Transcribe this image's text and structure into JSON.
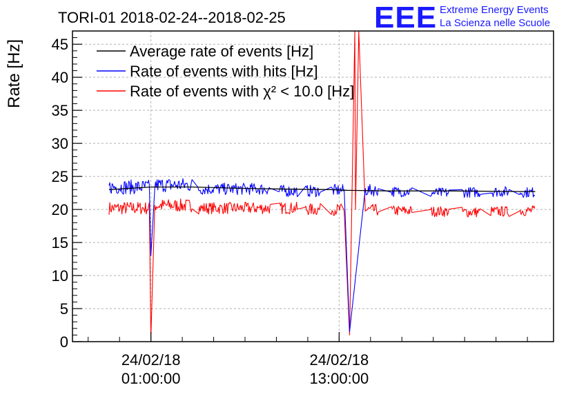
{
  "logo": {
    "mark": "EEE",
    "line1": "Extreme Energy Events",
    "line2": "La Scienza nelle Scuole"
  },
  "chart_data": {
    "type": "line",
    "title": "TORI-01 2018-02-24--2018-02-25",
    "xlabel": "",
    "ylabel": "Rate [Hz]",
    "ylim": [
      0,
      47
    ],
    "y_ticks": [
      0,
      5,
      10,
      15,
      20,
      25,
      30,
      35,
      40,
      45
    ],
    "xlim": [
      "2018-02-23T20:00:00",
      "2018-02-25T02:40:00"
    ],
    "x_ticks": [
      {
        "x": "2018-02-24T01:00:00",
        "date": "24/02/18",
        "time": "01:00:00"
      },
      {
        "x": "2018-02-24T13:00:00",
        "date": "24/02/18",
        "time": "13:00:00"
      }
    ],
    "grid": true,
    "legend_position": "top-left",
    "series": [
      {
        "name": "Average rate of events [Hz]",
        "color": "#000000",
        "points": [
          [
            "2018-02-23T22:20:00",
            23.0
          ],
          [
            "2018-02-24T01:00:00",
            23.4
          ],
          [
            "2018-02-24T01:10:00",
            23.4
          ],
          [
            "2018-02-24T03:40:00",
            23.4
          ],
          [
            "2018-02-24T06:40:00",
            23.2
          ],
          [
            "2018-02-24T09:00:00",
            23.1
          ],
          [
            "2018-02-24T12:30:00",
            23.0
          ],
          [
            "2018-02-24T13:30:00",
            22.9
          ],
          [
            "2018-02-24T16:10:00",
            22.8
          ],
          [
            "2018-02-24T20:00:00",
            22.8
          ],
          [
            "2018-02-25T01:30:00",
            22.7
          ]
        ]
      },
      {
        "name": "Rate of events with hits [Hz]",
        "color": "#0000ff",
        "segments": [
          {
            "start": "2018-02-23T22:20:00",
            "end": "2018-02-24T00:55:00",
            "mean": 23.4,
            "noise": 1.1
          },
          {
            "start": "2018-02-24T01:15:00",
            "end": "2018-02-24T03:40:00",
            "mean": 23.7,
            "noise": 1.1
          },
          {
            "start": "2018-02-24T04:00:00",
            "end": "2018-02-24T08:40:00",
            "mean": 23.1,
            "noise": 0.9
          },
          {
            "start": "2018-02-24T09:10:00",
            "end": "2018-02-24T10:20:00",
            "mean": 22.8,
            "noise": 0.9
          },
          {
            "start": "2018-02-24T10:50:00",
            "end": "2018-02-24T11:50:00",
            "mean": 22.8,
            "noise": 0.9
          },
          {
            "start": "2018-02-24T12:30:00",
            "end": "2018-02-24T13:20:00",
            "mean": 22.9,
            "noise": 0.9
          },
          {
            "start": "2018-02-24T14:40:00",
            "end": "2018-02-24T15:30:00",
            "mean": 22.9,
            "noise": 0.9
          },
          {
            "start": "2018-02-24T16:20:00",
            "end": "2018-02-24T17:40:00",
            "mean": 22.7,
            "noise": 0.8
          },
          {
            "start": "2018-02-24T18:50:00",
            "end": "2018-02-24T20:00:00",
            "mean": 22.5,
            "noise": 0.8
          },
          {
            "start": "2018-02-24T20:50:00",
            "end": "2018-02-24T22:00:00",
            "mean": 22.6,
            "noise": 0.8
          },
          {
            "start": "2018-02-24T22:40:00",
            "end": "2018-02-24T23:50:00",
            "mean": 22.7,
            "noise": 0.8
          },
          {
            "start": "2018-02-25T00:30:00",
            "end": "2018-02-25T01:30:00",
            "mean": 22.6,
            "noise": 0.8
          }
        ],
        "dips": [
          [
            "2018-02-24T01:00:00",
            13.0
          ],
          [
            "2018-02-24T13:40:00",
            1.5
          ]
        ]
      },
      {
        "name": "Rate of events with χ² < 10.0 [Hz]",
        "color": "#ff0000",
        "segments": [
          {
            "start": "2018-02-23T22:20:00",
            "end": "2018-02-24T00:55:00",
            "mean": 20.2,
            "noise": 1.0
          },
          {
            "start": "2018-02-24T01:15:00",
            "end": "2018-02-24T03:40:00",
            "mean": 20.6,
            "noise": 1.0
          },
          {
            "start": "2018-02-24T04:00:00",
            "end": "2018-02-24T08:40:00",
            "mean": 20.2,
            "noise": 0.9
          },
          {
            "start": "2018-02-24T09:10:00",
            "end": "2018-02-24T10:20:00",
            "mean": 20.2,
            "noise": 0.9
          },
          {
            "start": "2018-02-24T10:50:00",
            "end": "2018-02-24T11:50:00",
            "mean": 20.0,
            "noise": 0.9
          },
          {
            "start": "2018-02-24T12:30:00",
            "end": "2018-02-24T13:20:00",
            "mean": 20.0,
            "noise": 0.9
          },
          {
            "start": "2018-02-24T14:40:00",
            "end": "2018-02-24T15:30:00",
            "mean": 19.9,
            "noise": 0.9
          },
          {
            "start": "2018-02-24T16:20:00",
            "end": "2018-02-24T17:40:00",
            "mean": 19.8,
            "noise": 0.8
          },
          {
            "start": "2018-02-24T18:50:00",
            "end": "2018-02-24T20:00:00",
            "mean": 19.7,
            "noise": 0.8
          },
          {
            "start": "2018-02-24T20:50:00",
            "end": "2018-02-24T22:00:00",
            "mean": 19.6,
            "noise": 0.8
          },
          {
            "start": "2018-02-24T22:40:00",
            "end": "2018-02-24T23:50:00",
            "mean": 19.7,
            "noise": 0.8
          },
          {
            "start": "2018-02-25T00:30:00",
            "end": "2018-02-25T01:30:00",
            "mean": 19.8,
            "noise": 0.8
          }
        ],
        "dips": [
          [
            "2018-02-24T01:00:00",
            0.5
          ],
          [
            "2018-02-24T13:40:00",
            1.0
          ]
        ],
        "spikes": [
          [
            "2018-02-24T14:00:00",
            47
          ],
          [
            "2018-02-24T14:15:00",
            47
          ]
        ]
      }
    ]
  }
}
